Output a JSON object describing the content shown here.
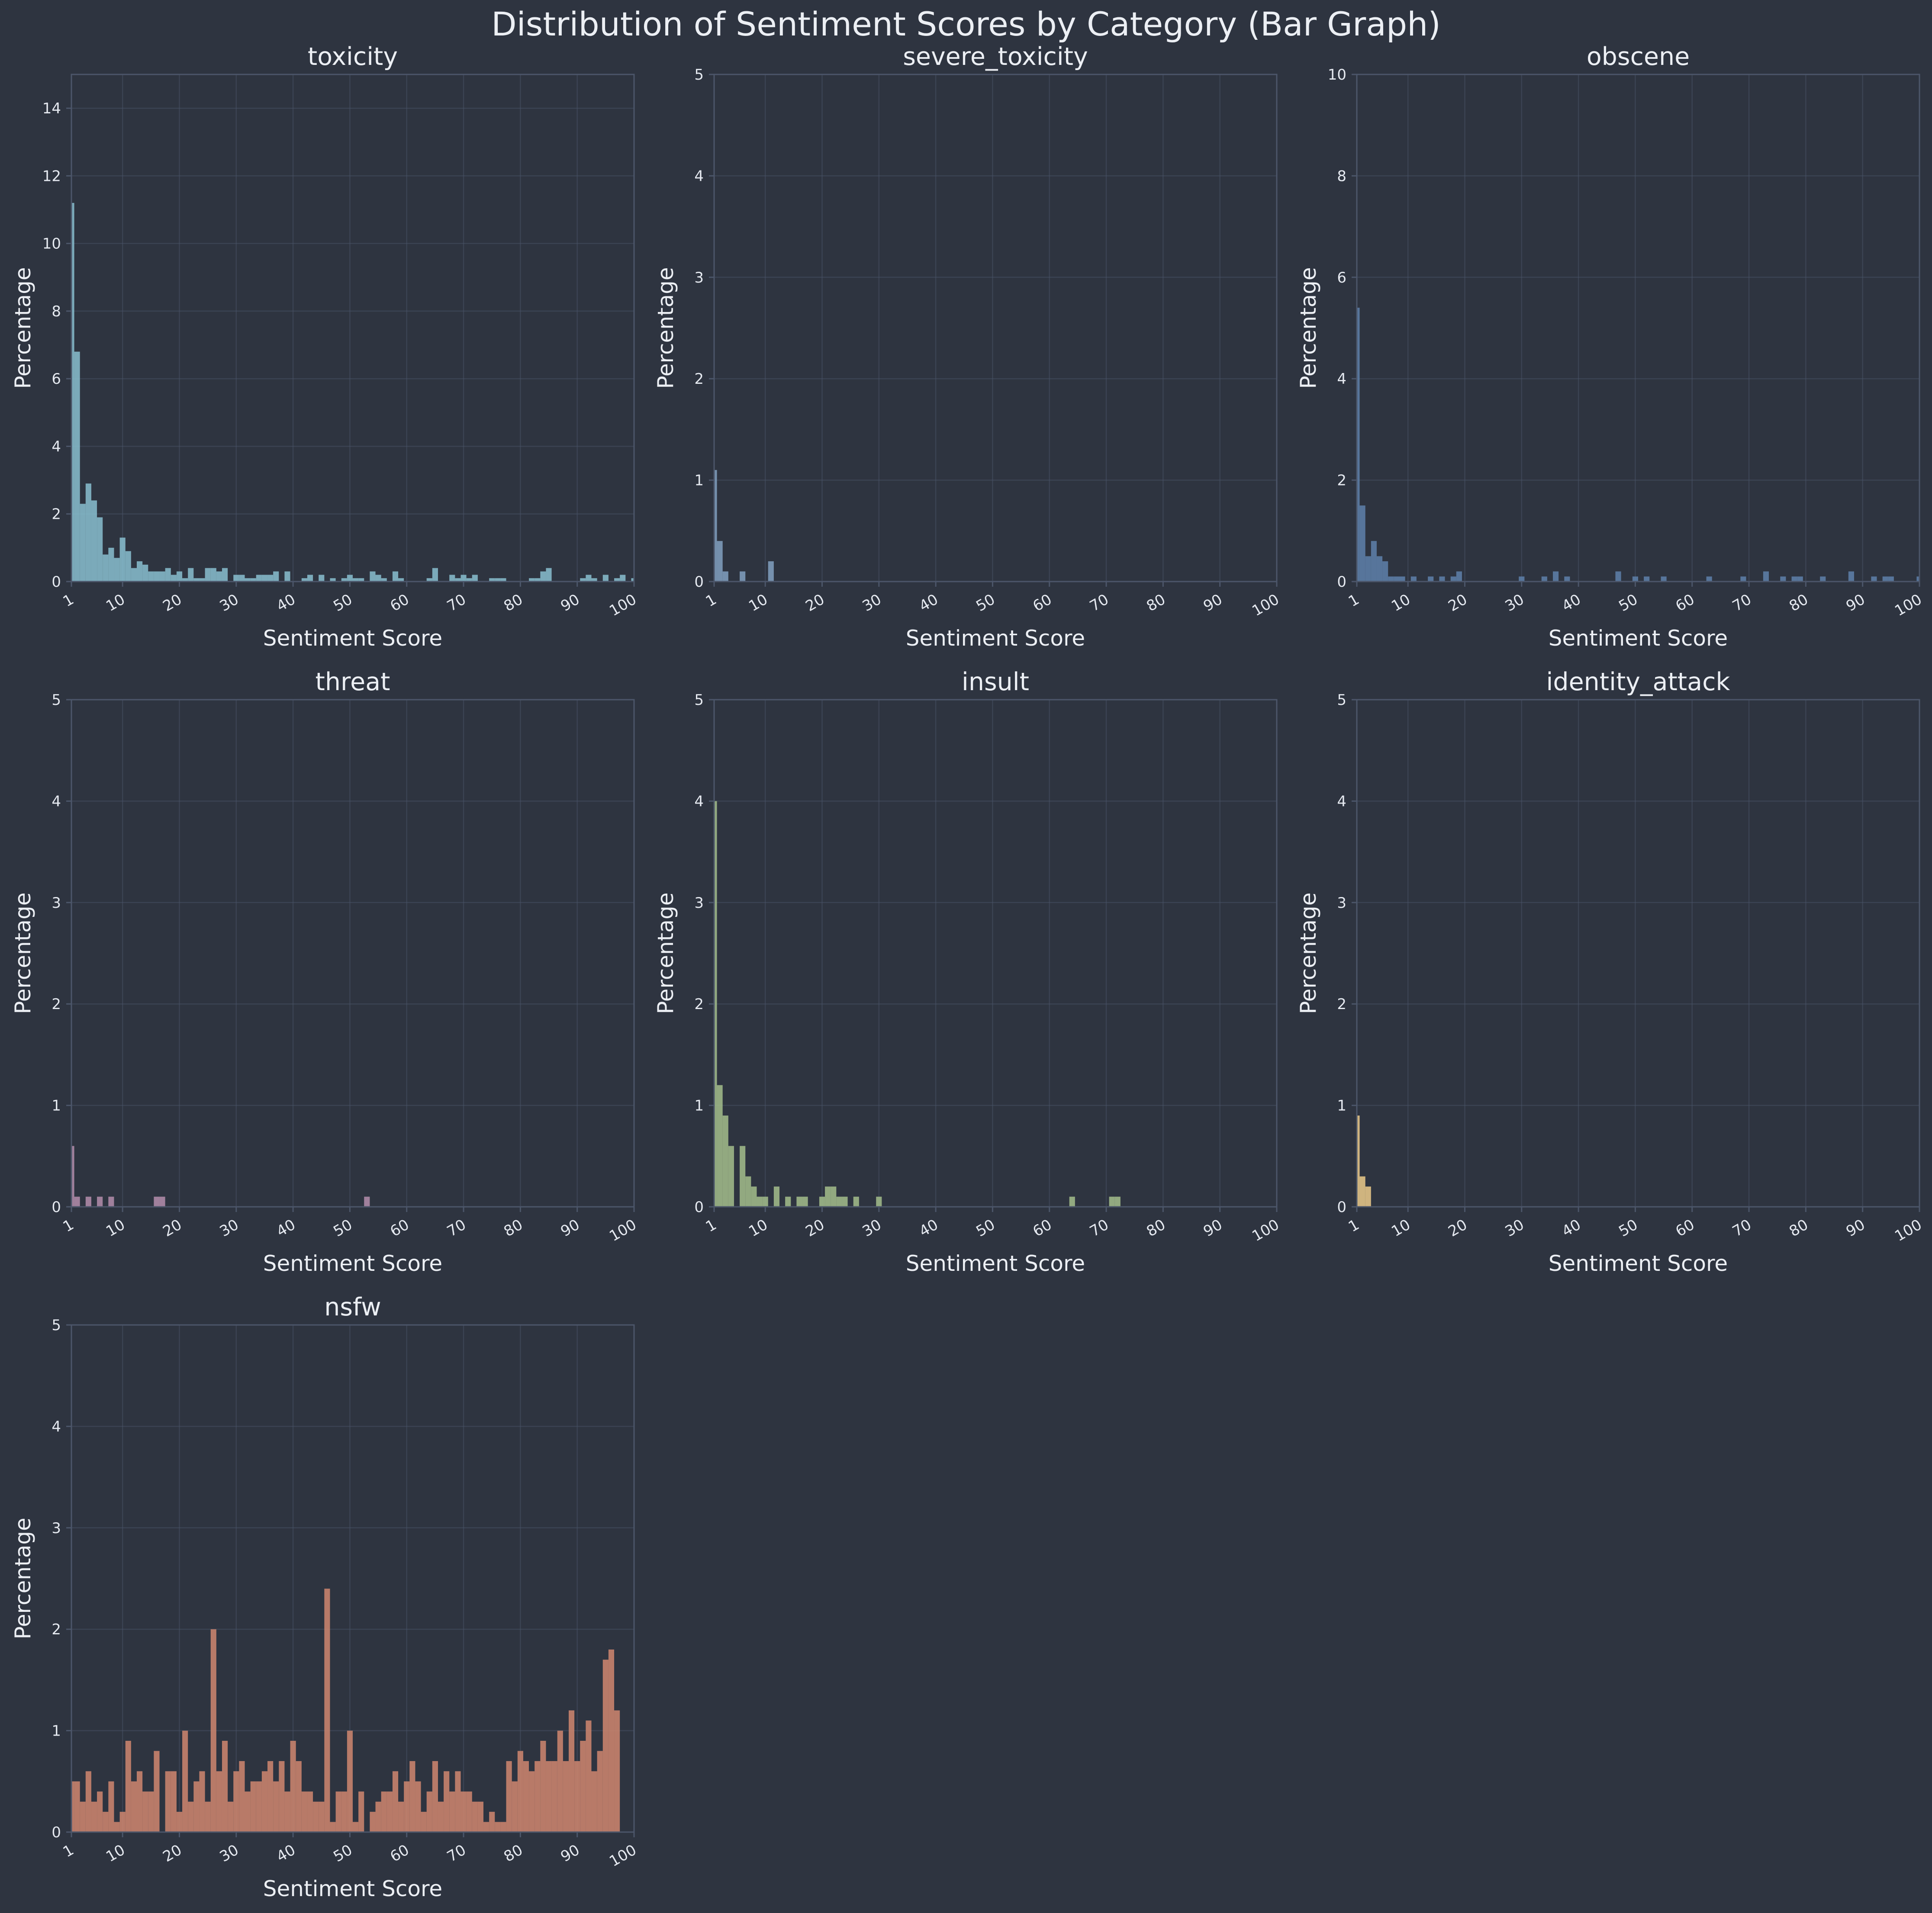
{
  "figure": {
    "title": "Distribution of Sentiment Scores by Category (Bar Graph)"
  },
  "chart_data": [
    {
      "type": "bar",
      "title": "toxicity",
      "xlabel": "Sentiment Score",
      "ylabel": "Percentage",
      "color": "#88c0d0",
      "xlim": [
        1,
        100
      ],
      "ylim": [
        0,
        15
      ],
      "xticks": [
        1,
        10,
        20,
        30,
        40,
        50,
        60,
        70,
        80,
        90,
        100
      ],
      "yticks": [
        0,
        2,
        4,
        6,
        8,
        10,
        12,
        14
      ],
      "grid": true,
      "x": [
        1,
        2,
        3,
        4,
        5,
        6,
        7,
        8,
        9,
        10,
        11,
        12,
        13,
        14,
        15,
        16,
        17,
        18,
        19,
        20,
        21,
        22,
        23,
        24,
        25,
        26,
        27,
        28,
        29,
        30,
        31,
        32,
        33,
        34,
        35,
        36,
        37,
        38,
        39,
        40,
        41,
        42,
        43,
        44,
        45,
        46,
        47,
        48,
        49,
        50,
        51,
        52,
        53,
        54,
        55,
        56,
        57,
        58,
        59,
        60,
        61,
        62,
        63,
        64,
        65,
        66,
        67,
        68,
        69,
        70,
        71,
        72,
        73,
        74,
        75,
        76,
        77,
        78,
        79,
        80,
        81,
        82,
        83,
        84,
        85,
        86,
        87,
        88,
        89,
        90,
        91,
        92,
        93,
        94,
        95,
        96,
        97,
        98,
        99,
        100
      ],
      "values": [
        11.2,
        6.8,
        2.3,
        2.9,
        2.4,
        1.9,
        0.8,
        1.0,
        0.7,
        1.3,
        0.9,
        0.4,
        0.6,
        0.5,
        0.3,
        0.3,
        0.3,
        0.4,
        0.2,
        0.3,
        0.1,
        0.4,
        0.1,
        0.1,
        0.4,
        0.4,
        0.3,
        0.4,
        0,
        0.2,
        0.2,
        0.1,
        0.1,
        0.2,
        0.2,
        0.2,
        0.3,
        0,
        0.3,
        0,
        0,
        0.1,
        0.2,
        0,
        0.2,
        0,
        0.1,
        0,
        0.1,
        0.2,
        0.1,
        0.1,
        0,
        0.3,
        0.2,
        0.1,
        0,
        0.3,
        0.1,
        0,
        0,
        0,
        0,
        0.1,
        0.4,
        0,
        0,
        0.2,
        0.1,
        0.2,
        0.1,
        0.2,
        0,
        0,
        0.1,
        0.1,
        0.1,
        0,
        0,
        0,
        0,
        0.1,
        0.1,
        0.3,
        0.4,
        0,
        0,
        0,
        0,
        0,
        0.1,
        0.2,
        0.1,
        0,
        0.2,
        0,
        0.1,
        0.2,
        0,
        0.1
      ]
    },
    {
      "type": "bar",
      "title": "severe_toxicity",
      "xlabel": "Sentiment Score",
      "ylabel": "Percentage",
      "color": "#81a1c1",
      "xlim": [
        1,
        100
      ],
      "ylim": [
        0,
        5
      ],
      "xticks": [
        1,
        10,
        20,
        30,
        40,
        50,
        60,
        70,
        80,
        90,
        100
      ],
      "yticks": [
        0,
        1,
        2,
        3,
        4,
        5
      ],
      "grid": true,
      "x": [
        1,
        2,
        3,
        4,
        5,
        6,
        7,
        8,
        9,
        10,
        11,
        12
      ],
      "values": [
        1.1,
        0.4,
        0.1,
        0,
        0,
        0.1,
        0,
        0,
        0,
        0,
        0.2,
        0
      ]
    },
    {
      "type": "bar",
      "title": "obscene",
      "xlabel": "Sentiment Score",
      "ylabel": "Percentage",
      "color": "#5e81ac",
      "xlim": [
        1,
        100
      ],
      "ylim": [
        0,
        10
      ],
      "xticks": [
        1,
        10,
        20,
        30,
        40,
        50,
        60,
        70,
        80,
        90,
        100
      ],
      "yticks": [
        0,
        2,
        4,
        6,
        8,
        10
      ],
      "grid": true,
      "x": [
        1,
        2,
        3,
        4,
        5,
        6,
        7,
        8,
        9,
        10,
        11,
        12,
        13,
        14,
        15,
        16,
        17,
        18,
        19,
        20,
        21,
        22,
        23,
        24,
        25,
        26,
        27,
        28,
        29,
        30,
        31,
        32,
        33,
        34,
        35,
        36,
        37,
        38,
        39,
        40,
        41,
        42,
        43,
        44,
        45,
        46,
        47,
        48,
        49,
        50,
        51,
        52,
        53,
        54,
        55,
        56,
        57,
        58,
        59,
        60,
        61,
        62,
        63,
        64,
        65,
        66,
        67,
        68,
        69,
        70,
        71,
        72,
        73,
        74,
        75,
        76,
        77,
        78,
        79,
        80,
        81,
        82,
        83,
        84,
        85,
        86,
        87,
        88,
        89,
        90,
        91,
        92,
        93,
        94,
        95,
        96,
        97,
        98,
        99,
        100
      ],
      "values": [
        5.4,
        1.5,
        0.5,
        0.8,
        0.5,
        0.4,
        0.1,
        0.1,
        0.1,
        0,
        0.1,
        0,
        0,
        0.1,
        0,
        0.1,
        0,
        0.1,
        0.2,
        0,
        0,
        0,
        0,
        0,
        0,
        0,
        0,
        0,
        0,
        0.1,
        0,
        0,
        0,
        0.1,
        0,
        0.2,
        0,
        0.1,
        0,
        0,
        0,
        0,
        0,
        0,
        0,
        0,
        0.2,
        0,
        0,
        0.1,
        0,
        0.1,
        0,
        0,
        0.1,
        0,
        0,
        0,
        0,
        0,
        0,
        0,
        0.1,
        0,
        0,
        0,
        0,
        0,
        0.1,
        0,
        0,
        0,
        0.2,
        0,
        0,
        0.1,
        0,
        0.1,
        0.1,
        0,
        0,
        0,
        0.1,
        0,
        0,
        0,
        0,
        0.2,
        0,
        0,
        0,
        0.1,
        0,
        0.1,
        0.1,
        0,
        0,
        0,
        0,
        0.1
      ]
    },
    {
      "type": "bar",
      "title": "threat",
      "xlabel": "Sentiment Score",
      "ylabel": "Percentage",
      "color": "#b48ead",
      "xlim": [
        1,
        100
      ],
      "ylim": [
        0,
        5
      ],
      "xticks": [
        1,
        10,
        20,
        30,
        40,
        50,
        60,
        70,
        80,
        90,
        100
      ],
      "yticks": [
        0,
        1,
        2,
        3,
        4,
        5
      ],
      "grid": true,
      "x": [
        1,
        2,
        3,
        4,
        5,
        6,
        7,
        8,
        9,
        10,
        11,
        12,
        13,
        14,
        15,
        16,
        17,
        18,
        19,
        20,
        21,
        22,
        23,
        24,
        25,
        26,
        27,
        28,
        29,
        30,
        31,
        32,
        33,
        34,
        35,
        36,
        37,
        38,
        39,
        40,
        41,
        42,
        43,
        44,
        45,
        46,
        47,
        48,
        49,
        50,
        51,
        52,
        53
      ],
      "values": [
        0.6,
        0.1,
        0,
        0.1,
        0,
        0.1,
        0,
        0.1,
        0,
        0,
        0,
        0,
        0,
        0,
        0,
        0.1,
        0.1,
        0,
        0,
        0,
        0,
        0,
        0,
        0,
        0,
        0,
        0,
        0,
        0,
        0,
        0,
        0,
        0,
        0,
        0,
        0,
        0,
        0,
        0,
        0,
        0,
        0,
        0,
        0,
        0,
        0,
        0,
        0,
        0,
        0,
        0,
        0,
        0.1
      ]
    },
    {
      "type": "bar",
      "title": "insult",
      "xlabel": "Sentiment Score",
      "ylabel": "Percentage",
      "color": "#a3be8c",
      "xlim": [
        1,
        100
      ],
      "ylim": [
        0,
        5
      ],
      "xticks": [
        1,
        10,
        20,
        30,
        40,
        50,
        60,
        70,
        80,
        90,
        100
      ],
      "yticks": [
        0,
        1,
        2,
        3,
        4,
        5
      ],
      "grid": true,
      "x": [
        1,
        2,
        3,
        4,
        5,
        6,
        7,
        8,
        9,
        10,
        11,
        12,
        13,
        14,
        15,
        16,
        17,
        18,
        19,
        20,
        21,
        22,
        23,
        24,
        25,
        26,
        27,
        28,
        29,
        30,
        31,
        32,
        33,
        34,
        35,
        36,
        37,
        38,
        39,
        40,
        41,
        42,
        43,
        44,
        45,
        46,
        47,
        48,
        49,
        50,
        51,
        52,
        53,
        54,
        55,
        56,
        57,
        58,
        59,
        60,
        61,
        62,
        63,
        64,
        65,
        66,
        67,
        68,
        69,
        70,
        71,
        72
      ],
      "values": [
        4.0,
        1.2,
        0.9,
        0.6,
        0,
        0.6,
        0.3,
        0.2,
        0.1,
        0.1,
        0,
        0.2,
        0,
        0.1,
        0,
        0.1,
        0.1,
        0,
        0,
        0.1,
        0.2,
        0.2,
        0.1,
        0.1,
        0,
        0.1,
        0,
        0,
        0,
        0.1,
        0,
        0,
        0,
        0,
        0,
        0,
        0,
        0,
        0,
        0,
        0,
        0,
        0,
        0,
        0,
        0,
        0,
        0,
        0,
        0,
        0,
        0,
        0,
        0,
        0,
        0,
        0,
        0,
        0,
        0,
        0,
        0,
        0,
        0.1,
        0,
        0,
        0,
        0,
        0,
        0,
        0.1,
        0.1
      ]
    },
    {
      "type": "bar",
      "title": "identity_attack",
      "xlabel": "Sentiment Score",
      "ylabel": "Percentage",
      "color": "#ebcb8b",
      "xlim": [
        1,
        100
      ],
      "ylim": [
        0,
        5
      ],
      "xticks": [
        1,
        10,
        20,
        30,
        40,
        50,
        60,
        70,
        80,
        90,
        100
      ],
      "yticks": [
        0,
        1,
        2,
        3,
        4,
        5
      ],
      "grid": true,
      "x": [
        1,
        2,
        3
      ],
      "values": [
        0.9,
        0.3,
        0.2
      ]
    },
    {
      "type": "bar",
      "title": "nsfw",
      "xlabel": "Sentiment Score",
      "ylabel": "Percentage",
      "color": "#d08770",
      "xlim": [
        1,
        100
      ],
      "ylim": [
        0,
        5
      ],
      "xticks": [
        1,
        10,
        20,
        30,
        40,
        50,
        60,
        70,
        80,
        90,
        100
      ],
      "yticks": [
        0,
        1,
        2,
        3,
        4,
        5
      ],
      "grid": true,
      "x": [
        1,
        2,
        3,
        4,
        5,
        6,
        7,
        8,
        9,
        10,
        11,
        12,
        13,
        14,
        15,
        16,
        17,
        18,
        19,
        20,
        21,
        22,
        23,
        24,
        25,
        26,
        27,
        28,
        29,
        30,
        31,
        32,
        33,
        34,
        35,
        36,
        37,
        38,
        39,
        40,
        41,
        42,
        43,
        44,
        45,
        46,
        47,
        48,
        49,
        50,
        51,
        52,
        53,
        54,
        55,
        56,
        57,
        58,
        59,
        60,
        61,
        62,
        63,
        64,
        65,
        66,
        67,
        68,
        69,
        70,
        71,
        72,
        73,
        74,
        75,
        76,
        77,
        78,
        79,
        80,
        81,
        82,
        83,
        84,
        85,
        86,
        87,
        88,
        89,
        90,
        91,
        92,
        93,
        94,
        95,
        96,
        97
      ],
      "values": [
        0.5,
        0.5,
        0.3,
        0.6,
        0.3,
        0.4,
        0.2,
        0.5,
        0.1,
        0.2,
        0.9,
        0.5,
        0.6,
        0.4,
        0.4,
        0.8,
        0,
        0.6,
        0.6,
        0.2,
        1.0,
        0.3,
        0.5,
        0.6,
        0.3,
        2.0,
        0.6,
        0.9,
        0.3,
        0.6,
        0.7,
        0.4,
        0.5,
        0.5,
        0.6,
        0.7,
        0.5,
        0.7,
        0.4,
        0.9,
        0.7,
        0.4,
        0.4,
        0.3,
        0.3,
        2.4,
        0.1,
        0.4,
        0.4,
        1.0,
        0.1,
        0.4,
        0,
        0.2,
        0.3,
        0.4,
        0.4,
        0.6,
        0.3,
        0.5,
        0.7,
        0.5,
        0.2,
        0.4,
        0.7,
        0.3,
        0.6,
        0.4,
        0.6,
        0.4,
        0.4,
        0.3,
        0.3,
        0.1,
        0.2,
        0.1,
        0.1,
        0.7,
        0.5,
        0.8,
        0.7,
        0.6,
        0.7,
        0.9,
        0.7,
        0.7,
        1.0,
        0.7,
        1.2,
        0.7,
        0.9,
        1.1,
        0.6,
        0.8,
        1.7,
        1.8,
        1.2
      ]
    }
  ]
}
